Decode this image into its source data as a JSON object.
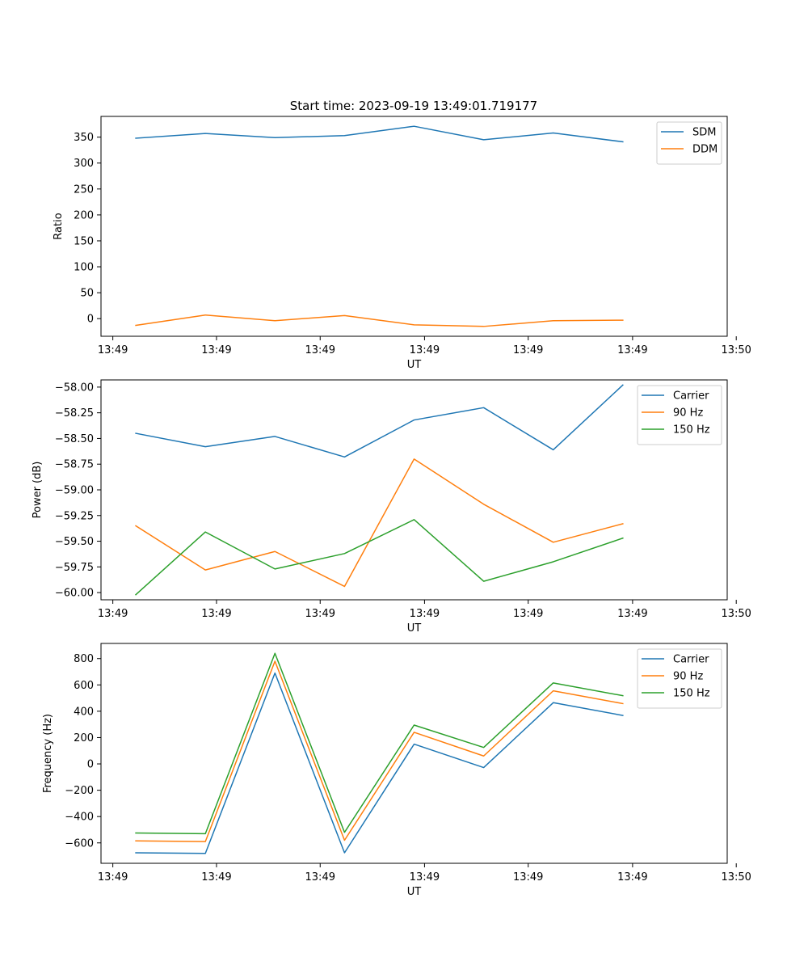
{
  "figure": {
    "title": "Start time: 2023-09-19 13:49:01.719177"
  },
  "chart_data": [
    {
      "type": "line",
      "title": "Start time: 2023-09-19 13:49:01.719177",
      "xlabel": "UT",
      "ylabel": "Ratio",
      "xlim": [
        -0.5,
        8.5
      ],
      "ylim": [
        -34,
        390
      ],
      "x_ticks": [
        -0.33,
        1.16,
        2.65,
        4.15,
        5.64,
        7.14,
        8.63
      ],
      "x_tick_labels": [
        "13:49",
        "13:49",
        "13:49",
        "13:49",
        "13:49",
        "13:49",
        "13:50"
      ],
      "y_ticks": [
        0,
        50,
        100,
        150,
        200,
        250,
        300,
        350
      ],
      "y_tick_labels": [
        "0",
        "50",
        "100",
        "150",
        "200",
        "250",
        "300",
        "350"
      ],
      "legend": "top-right",
      "grid": false,
      "x": [
        0,
        1,
        2,
        3,
        4,
        5,
        6,
        7
      ],
      "series": [
        {
          "name": "SDM",
          "color": "#1f77b4",
          "values": [
            348,
            357,
            349,
            353,
            371,
            345,
            358,
            341
          ]
        },
        {
          "name": "DDM",
          "color": "#ff7f0e",
          "values": [
            -13,
            7,
            -4,
            6,
            -12,
            -15,
            -4,
            -3
          ]
        }
      ]
    },
    {
      "type": "line",
      "title": "",
      "xlabel": "UT",
      "ylabel": "Power (dB)",
      "xlim": [
        -0.5,
        8.5
      ],
      "ylim": [
        -60.07,
        -57.93
      ],
      "x_ticks": [
        -0.33,
        1.16,
        2.65,
        4.15,
        5.64,
        7.14,
        8.63
      ],
      "x_tick_labels": [
        "13:49",
        "13:49",
        "13:49",
        "13:49",
        "13:49",
        "13:49",
        "13:50"
      ],
      "y_ticks": [
        -60.0,
        -59.75,
        -59.5,
        -59.25,
        -59.0,
        -58.75,
        -58.5,
        -58.25,
        -58.0
      ],
      "y_tick_labels": [
        "−60.00",
        "−59.75",
        "−59.50",
        "−59.25",
        "−59.00",
        "−58.75",
        "−58.50",
        "−58.25",
        "−58.00"
      ],
      "legend": "top-right",
      "grid": false,
      "x": [
        0,
        1,
        2,
        3,
        4,
        5,
        6,
        7
      ],
      "series": [
        {
          "name": "Carrier",
          "color": "#1f77b4",
          "values": [
            -58.45,
            -58.58,
            -58.48,
            -58.68,
            -58.32,
            -58.2,
            -58.61,
            -57.98
          ]
        },
        {
          "name": "90 Hz",
          "color": "#ff7f0e",
          "values": [
            -59.35,
            -59.78,
            -59.6,
            -59.94,
            -58.7,
            -59.14,
            -59.51,
            -59.33
          ]
        },
        {
          "name": "150 Hz",
          "color": "#2ca02c",
          "values": [
            -60.02,
            -59.41,
            -59.77,
            -59.62,
            -59.29,
            -59.89,
            -59.7,
            -59.47
          ]
        }
      ]
    },
    {
      "type": "line",
      "title": "",
      "xlabel": "UT",
      "ylabel": "Frequency (Hz)",
      "xlim": [
        -0.5,
        8.5
      ],
      "ylim": [
        -755,
        915
      ],
      "x_ticks": [
        -0.33,
        1.16,
        2.65,
        4.15,
        5.64,
        7.14,
        8.63
      ],
      "x_tick_labels": [
        "13:49",
        "13:49",
        "13:49",
        "13:49",
        "13:49",
        "13:49",
        "13:50"
      ],
      "y_ticks": [
        -600,
        -400,
        -200,
        0,
        200,
        400,
        600,
        800
      ],
      "y_tick_labels": [
        "−600",
        "−400",
        "−200",
        "0",
        "200",
        "400",
        "600",
        "800"
      ],
      "legend": "top-right",
      "grid": false,
      "x": [
        0,
        1,
        2,
        3,
        4,
        5,
        6,
        7
      ],
      "series": [
        {
          "name": "Carrier",
          "color": "#1f77b4",
          "values": [
            -675,
            -680,
            690,
            -675,
            150,
            -28,
            465,
            368
          ]
        },
        {
          "name": "90 Hz",
          "color": "#ff7f0e",
          "values": [
            -585,
            -590,
            780,
            -580,
            240,
            60,
            555,
            458
          ]
        },
        {
          "name": "150 Hz",
          "color": "#2ca02c",
          "values": [
            -525,
            -530,
            840,
            -520,
            295,
            125,
            615,
            518
          ]
        }
      ]
    }
  ]
}
